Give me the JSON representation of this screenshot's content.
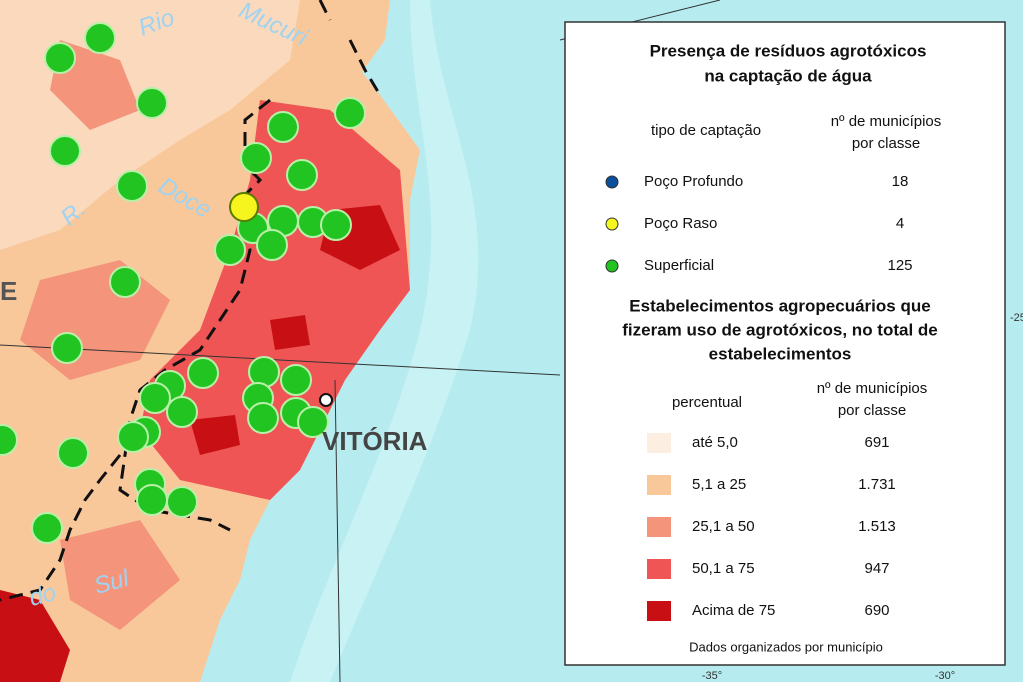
{
  "map_labels": [
    "Rio",
    "Mucuri",
    "Doce",
    "R.",
    "E",
    "VITÓRIA",
    "do",
    "Sul"
  ],
  "graticule_labels": [
    "-35°",
    "-30°",
    "-25"
  ],
  "legend": {
    "title": [
      "Presença de resíduos agrotóxicos",
      "na captação de água"
    ],
    "capture_header": {
      "type": "tipo de captação",
      "count": [
        "nº de municípios",
        "por classe"
      ]
    },
    "capture_items": [
      {
        "label": "Poço Profundo",
        "count": "18",
        "color": "#0b4f9c"
      },
      {
        "label": "Poço Raso",
        "count": "4",
        "color": "#f6f61e"
      },
      {
        "label": "Superficial",
        "count": "125",
        "color": "#22c422"
      }
    ],
    "usage_title": [
      "Estabelecimentos agropecuários que",
      "fizeram uso de agrotóxicos, no total de",
      "estabelecimentos"
    ],
    "usage_header": {
      "type": "percentual",
      "count": [
        "nº de municípios",
        "por classe"
      ]
    },
    "usage_items": [
      {
        "label": "até 5,0",
        "count": "691",
        "color": "#fdeee2"
      },
      {
        "label": "5,1 a 25",
        "count": "1.731",
        "color": "#f9c89a"
      },
      {
        "label": "25,1 a 50",
        "count": "1.513",
        "color": "#f4947a"
      },
      {
        "label": "50,1 a 75",
        "count": "947",
        "color": "#ef5555"
      },
      {
        "label": "Acima de 75",
        "count": "690",
        "color": "#c80f14"
      }
    ],
    "note": "Dados organizados por município"
  }
}
